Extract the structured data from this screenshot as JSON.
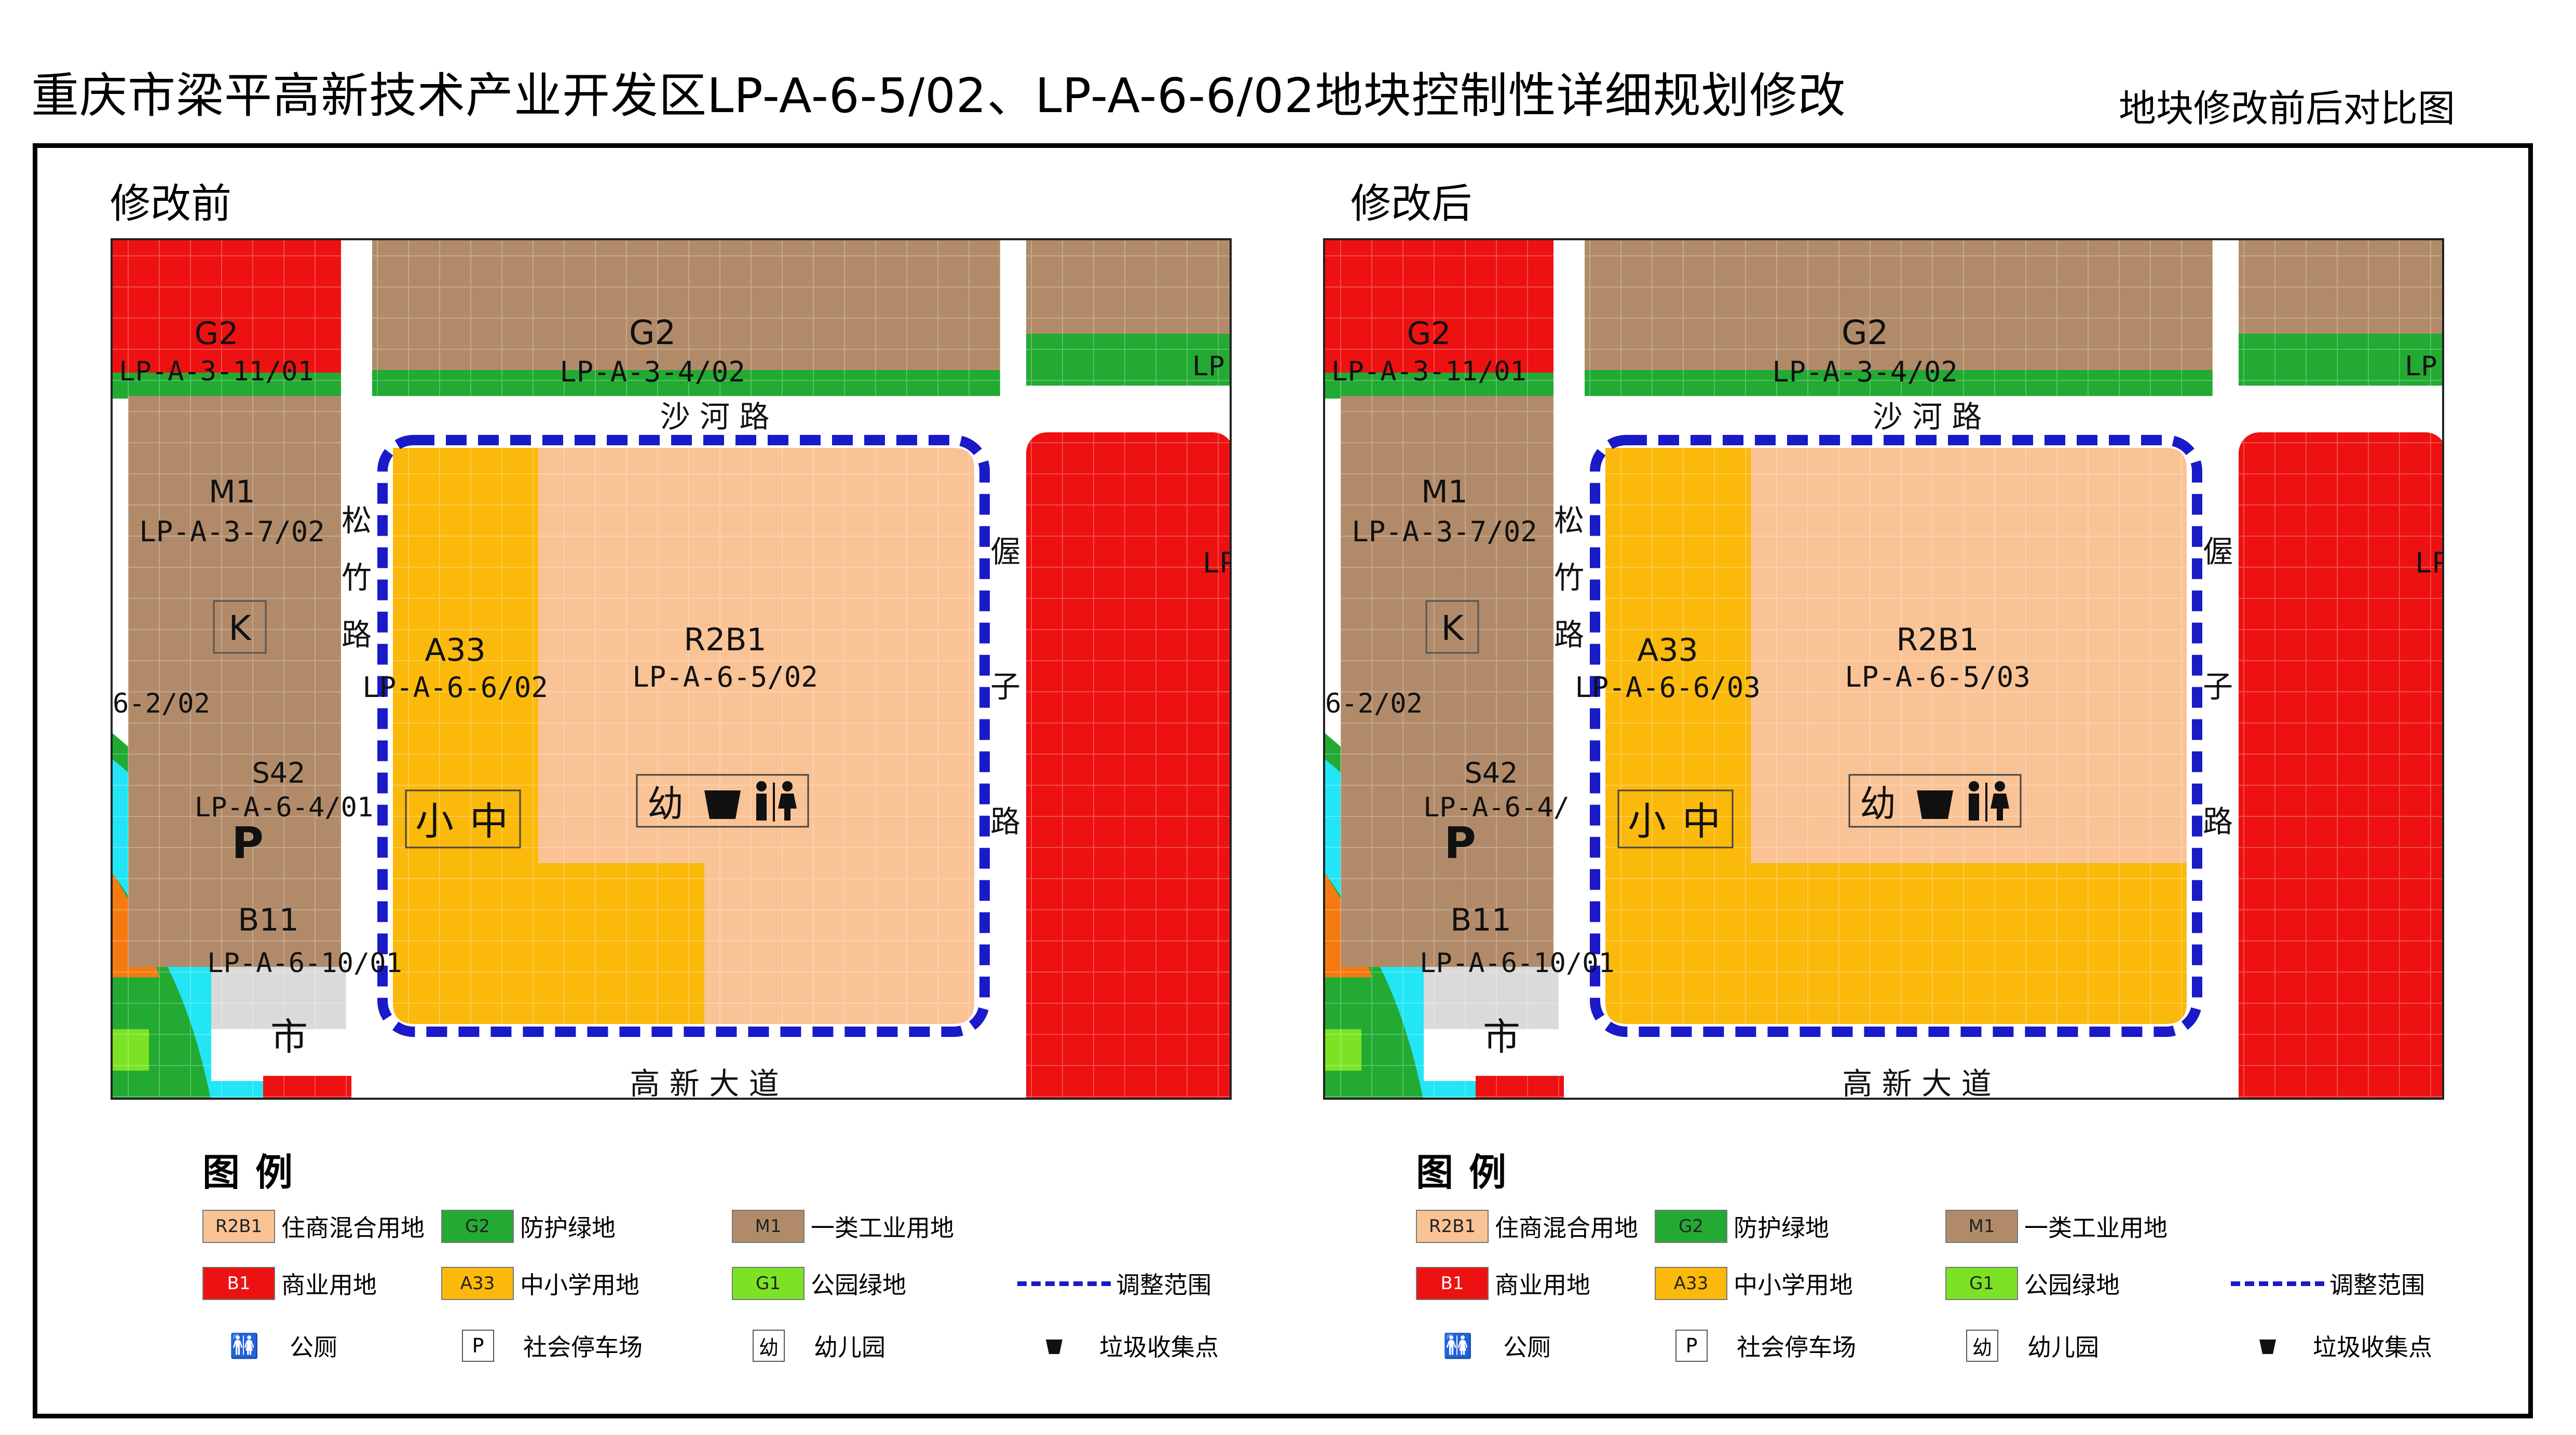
{
  "title": "重庆市梁平高新技术产业开发区LP-A-6-5/02、LP-A-6-6/02地块控制性详细规划修改",
  "subtitle": "地块修改前后对比图",
  "colors": {
    "r2b1": "#f9c396",
    "a33": "#fbb90c",
    "b1": "#ee1111",
    "g2": "#22aa33",
    "g1": "#7be324",
    "m1": "#b18b69",
    "s42": "#dadada",
    "river": "#22e5f5",
    "orange": "#f57a10",
    "boundary": "#1a1ac8"
  },
  "maps": [
    {
      "heading": "修改前",
      "roads": {
        "north": "沙  河  路",
        "west": "松竹路",
        "east": "偓子路",
        "south": "高  新  大  道"
      },
      "parcels": {
        "g2_nw": {
          "code": "G2",
          "id": "LP-A-3-11/01"
        },
        "g2_n": {
          "code": "G2",
          "id": "LP-A-3-4/02"
        },
        "m1": {
          "code": "M1",
          "id": "LP-A-3-7/02"
        },
        "k": "K",
        "s42": {
          "code": "S42",
          "id": "LP-A-6-4/01"
        },
        "p": "P",
        "b11": {
          "code": "B11",
          "id": "LP-A-6-10/01"
        },
        "shi": "市",
        "a33": {
          "code": "A33",
          "id": "LP-A-6-6/02"
        },
        "r2b1": {
          "code": "R2B1",
          "id": "LP-A-6-5/02"
        },
        "west_cut": "6-2/02",
        "lp_e1": "LP-",
        "lp_e2": "LP-A",
        "school": [
          "小",
          "中"
        ],
        "kinder": "幼"
      }
    },
    {
      "heading": "修改后",
      "roads": {
        "north": "沙  河  路",
        "west": "松竹路",
        "east": "偓子路",
        "south": "高  新  大  道"
      },
      "parcels": {
        "g2_nw": {
          "code": "G2",
          "id": "LP-A-3-11/01"
        },
        "g2_n": {
          "code": "G2",
          "id": "LP-A-3-4/02"
        },
        "m1": {
          "code": "M1",
          "id": "LP-A-3-7/02"
        },
        "k": "K",
        "s42": {
          "code": "S42",
          "id": "LP-A-6-4/"
        },
        "p": "P",
        "b11": {
          "code": "B11",
          "id": "LP-A-6-10/01"
        },
        "shi": "市",
        "a33": {
          "code": "A33",
          "id": "LP-A-6-6/03"
        },
        "r2b1": {
          "code": "R2B1",
          "id": "LP-A-6-5/03"
        },
        "west_cut": "6-2/02",
        "lp_e1": "LP-",
        "lp_e2": "LP-A",
        "school": [
          "小",
          "中"
        ],
        "kinder": "幼"
      }
    }
  ],
  "legend": {
    "title": "图例",
    "items": [
      {
        "code": "R2B1",
        "label": "住商混合用地"
      },
      {
        "code": "G2",
        "label": "防护绿地"
      },
      {
        "code": "M1",
        "label": "一类工业用地"
      },
      {
        "code": "B1",
        "label": "商业用地"
      },
      {
        "code": "A33",
        "label": "中小学用地"
      },
      {
        "code": "G1",
        "label": "公园绿地"
      },
      {
        "code": "",
        "label": "调整范围"
      }
    ],
    "symbols": [
      {
        "icon": "toilet-icon",
        "label": "公厕"
      },
      {
        "icon": "P",
        "label": "社会停车场"
      },
      {
        "icon": "幼",
        "label": "幼儿园"
      },
      {
        "icon": "trash-icon",
        "label": "垃圾收集点"
      }
    ]
  }
}
